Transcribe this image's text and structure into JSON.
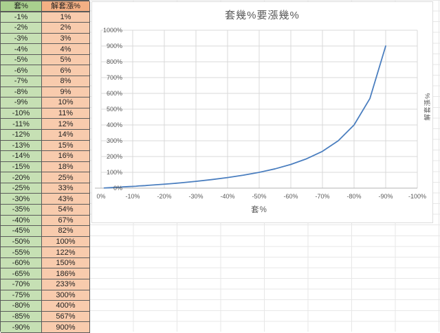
{
  "sheet": {
    "table": {
      "headers": [
        "套%",
        "解套漲%"
      ],
      "rows": [
        [
          "-1%",
          "1%"
        ],
        [
          "-2%",
          "2%"
        ],
        [
          "-3%",
          "3%"
        ],
        [
          "-4%",
          "4%"
        ],
        [
          "-5%",
          "5%"
        ],
        [
          "-6%",
          "6%"
        ],
        [
          "-7%",
          "8%"
        ],
        [
          "-8%",
          "9%"
        ],
        [
          "-9%",
          "10%"
        ],
        [
          "-10%",
          "11%"
        ],
        [
          "-11%",
          "12%"
        ],
        [
          "-12%",
          "14%"
        ],
        [
          "-13%",
          "15%"
        ],
        [
          "-14%",
          "16%"
        ],
        [
          "-15%",
          "18%"
        ],
        [
          "-20%",
          "25%"
        ],
        [
          "-25%",
          "33%"
        ],
        [
          "-30%",
          "43%"
        ],
        [
          "-35%",
          "54%"
        ],
        [
          "-40%",
          "67%"
        ],
        [
          "-45%",
          "82%"
        ],
        [
          "-50%",
          "100%"
        ],
        [
          "-55%",
          "122%"
        ],
        [
          "-60%",
          "150%"
        ],
        [
          "-65%",
          "186%"
        ],
        [
          "-70%",
          "233%"
        ],
        [
          "-75%",
          "300%"
        ],
        [
          "-80%",
          "400%"
        ],
        [
          "-85%",
          "567%"
        ],
        [
          "-90%",
          "900%"
        ]
      ]
    },
    "colors": {
      "green_header": "#a9d08e",
      "green_cell": "#c6e0b4",
      "orange_header": "#f4b084",
      "orange_cell": "#f8cbad",
      "cell_border": "#595959",
      "sheet_gridline": "#e7e7e7"
    }
  },
  "chart_data": {
    "type": "line",
    "title": "套幾%要漲幾%",
    "xlabel": "套%",
    "ylabel": "解套漲%",
    "x": [
      -1,
      -2,
      -3,
      -4,
      -5,
      -6,
      -7,
      -8,
      -9,
      -10,
      -11,
      -12,
      -13,
      -14,
      -15,
      -20,
      -25,
      -30,
      -35,
      -40,
      -45,
      -50,
      -55,
      -60,
      -65,
      -70,
      -75,
      -80,
      -85,
      -90
    ],
    "y": [
      1,
      2,
      3,
      4,
      5,
      6,
      8,
      9,
      10,
      11,
      12,
      14,
      15,
      16,
      18,
      25,
      33,
      43,
      54,
      67,
      82,
      100,
      122,
      150,
      186,
      233,
      300,
      400,
      567,
      900
    ],
    "xlim": [
      0,
      -100
    ],
    "ylim": [
      0,
      1000
    ],
    "x_tick_labels": [
      "0%",
      "-10%",
      "-20%",
      "-30%",
      "-40%",
      "-50%",
      "-60%",
      "-70%",
      "-80%",
      "-90%",
      "-100%"
    ],
    "y_tick_labels": [
      "0%",
      "100%",
      "200%",
      "300%",
      "400%",
      "500%",
      "600%",
      "700%",
      "800%",
      "900%",
      "1000%"
    ],
    "grid": true,
    "legend": "none",
    "line_color": "#4a7ebf",
    "text_color": "#595959",
    "gridline_color": "#d9d9d9",
    "axis_line_color": "#b3b3b3"
  }
}
